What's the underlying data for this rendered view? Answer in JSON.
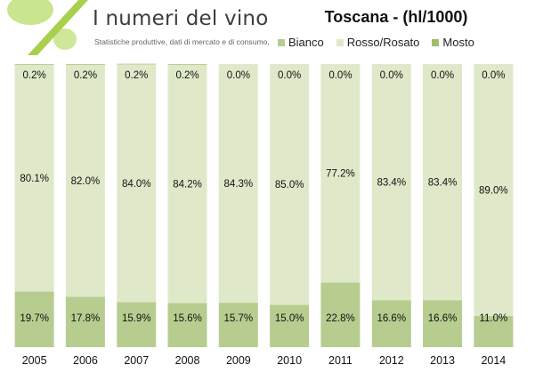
{
  "header": {
    "brand_title": "I numeri del vino",
    "brand_subtitle": "Statistiche produttive, dati di mercato e di consumo,"
  },
  "colors": {
    "bianco": "#b6cd8f",
    "rosso_rosato": "#dfe9c9",
    "mosto": "#9fbe67",
    "background": "#ffffff",
    "logo_green": "#b8d96a"
  },
  "chart_data": {
    "type": "bar",
    "stacked": true,
    "normalized": true,
    "title": "Toscana - (hl/1000)",
    "categories": [
      "2005",
      "2006",
      "2007",
      "2008",
      "2009",
      "2010",
      "2011",
      "2012",
      "2013",
      "2014"
    ],
    "series": [
      {
        "name": "Bianco",
        "values": [
          19.7,
          17.8,
          15.9,
          15.6,
          15.7,
          15.0,
          22.8,
          16.6,
          16.6,
          11.0
        ],
        "labels": [
          "19.7%",
          "17.8%",
          "15.9%",
          "15.6%",
          "15.7%",
          "15.0%",
          "22.8%",
          "16.6%",
          "16.6%",
          "11.0%"
        ]
      },
      {
        "name": "Rosso/Rosato",
        "values": [
          80.1,
          82.0,
          84.0,
          84.2,
          84.3,
          85.0,
          77.2,
          83.4,
          83.4,
          89.0
        ],
        "labels": [
          "80.1%",
          "82.0%",
          "84.0%",
          "84.2%",
          "84.3%",
          "85.0%",
          "77.2%",
          "83.4%",
          "83.4%",
          "89.0%"
        ]
      },
      {
        "name": "Mosto",
        "values": [
          0.2,
          0.2,
          0.2,
          0.2,
          0.0,
          0.0,
          0.0,
          0.0,
          0.0,
          0.0
        ],
        "labels": [
          "0.2%",
          "0.2%",
          "0.2%",
          "0.2%",
          "0.0%",
          "0.0%",
          "0.0%",
          "0.0%",
          "0.0%",
          "0.0%"
        ]
      }
    ],
    "ylim": [
      0,
      100
    ],
    "grid": false,
    "legend": "top-right"
  }
}
